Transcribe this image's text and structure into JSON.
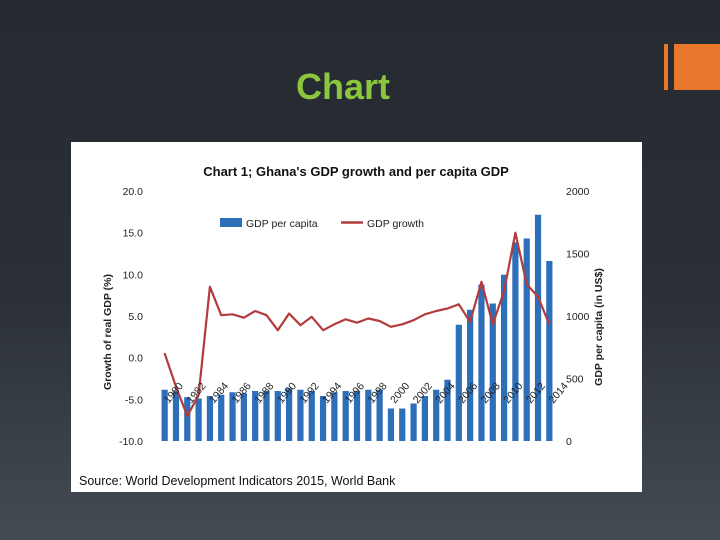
{
  "slide": {
    "title": "Chart",
    "colors": {
      "title": "#8cc63f",
      "accent": "#e8772b"
    }
  },
  "chart_data": {
    "type": "bar",
    "title": "Chart 1; Ghana's GDP growth and per capita GDP",
    "categories": [
      "1980",
      "1981",
      "1982",
      "1983",
      "1984",
      "1985",
      "1986",
      "1987",
      "1988",
      "1989",
      "1990",
      "1991",
      "1992",
      "1993",
      "1994",
      "1995",
      "1996",
      "1997",
      "1998",
      "1999",
      "2000",
      "2001",
      "2002",
      "2003",
      "2004",
      "2005",
      "2006",
      "2007",
      "2008",
      "2009",
      "2010",
      "2011",
      "2012",
      "2013",
      "2014"
    ],
    "category_labels": [
      "1980",
      "1982",
      "1984",
      "1986",
      "1988",
      "1990",
      "1992",
      "1994",
      "1996",
      "1998",
      "2000",
      "2002",
      "2004",
      "2006",
      "2008",
      "2010",
      "2012",
      "2014"
    ],
    "y_left": {
      "label": "Growth of real GDP (%)",
      "ylim": [
        -10,
        20
      ],
      "ticks": [
        "-10.0",
        "-5.0",
        "0.0",
        "5.0",
        "10.0",
        "15.0",
        "20.0"
      ]
    },
    "y_right": {
      "label": "GDP per capita (in US$)",
      "ylim": [
        0,
        2000
      ],
      "ticks": [
        "0",
        "500",
        "1000",
        "1500",
        "2000"
      ]
    },
    "series": [
      {
        "name": "GDP per capita",
        "kind": "bar",
        "axis": "right",
        "color": "#2e6fba",
        "values": [
          410,
          400,
          350,
          340,
          360,
          370,
          390,
          380,
          400,
          400,
          400,
          420,
          410,
          400,
          360,
          390,
          400,
          400,
          410,
          410,
          260,
          260,
          300,
          360,
          410,
          490,
          930,
          1050,
          1250,
          1100,
          1330,
          1590,
          1620,
          1810,
          1440
        ]
      },
      {
        "name": "GDP growth",
        "kind": "line",
        "axis": "left",
        "color": "#b23b3b",
        "values": [
          0.5,
          -3.5,
          -7.0,
          -4.5,
          8.5,
          5.1,
          5.2,
          4.8,
          5.6,
          5.1,
          3.3,
          5.3,
          3.9,
          4.9,
          3.3,
          4.0,
          4.6,
          4.2,
          4.7,
          4.4,
          3.7,
          4.0,
          4.5,
          5.2,
          5.6,
          5.9,
          6.4,
          4.3,
          9.1,
          4.0,
          8.0,
          15.0,
          8.8,
          7.3,
          4.0
        ]
      }
    ],
    "legend": {
      "position": "top",
      "entries": [
        "GDP per capita",
        "GDP growth"
      ]
    },
    "grid": false,
    "source": "Source: World Development Indicators 2015, World Bank"
  }
}
